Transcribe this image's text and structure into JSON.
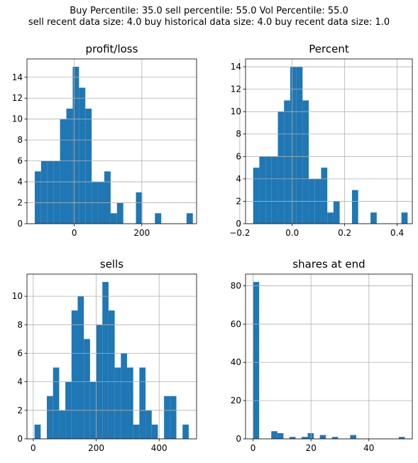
{
  "suptitle": {
    "line1": "Buy Percentile: 35.0 sell percentile: 55.0 Vol Percentile: 55.0",
    "line2": "sell recent data size: 4.0 buy historical data size: 4.0 buy recent data size: 1.0"
  },
  "colors": {
    "bar": "#1f77b4",
    "grid": "#b0b0b0",
    "axis": "#000000"
  },
  "chart_data": [
    {
      "type": "bar",
      "title": "profit/loss",
      "grid": true,
      "bins": 25,
      "xlim": [
        -140,
        362
      ],
      "ylim": [
        0,
        15.75
      ],
      "xticks": [
        0,
        200
      ],
      "xtick_labels": [
        "0",
        "200"
      ],
      "yticks": [
        0,
        2,
        4,
        6,
        8,
        10,
        12,
        14
      ],
      "yticks_labels": [
        "0",
        "2",
        "4",
        "6",
        "8",
        "10",
        "12",
        "14"
      ],
      "bin_range": [
        -117,
        351
      ],
      "counts": [
        5,
        6,
        6,
        6,
        10,
        11,
        15,
        13,
        11,
        4,
        4,
        5,
        1,
        2,
        0,
        0,
        3,
        0,
        0,
        1,
        0,
        0,
        0,
        0,
        1
      ]
    },
    {
      "type": "bar",
      "title": "Percent",
      "grid": true,
      "bins": 25,
      "xlim": [
        -0.178,
        0.458
      ],
      "ylim": [
        0,
        14.7
      ],
      "xticks": [
        -0.2,
        0.0,
        0.2,
        0.4
      ],
      "xtick_labels": [
        "−0.2",
        "0.0",
        "0.2",
        "0.4"
      ],
      "yticks": [
        0,
        2,
        4,
        6,
        8,
        10,
        12,
        14
      ],
      "yticks_labels": [
        "0",
        "2",
        "4",
        "6",
        "8",
        "10",
        "12",
        "14"
      ],
      "bin_range": [
        -0.149,
        0.44
      ],
      "counts": [
        5,
        6,
        6,
        6,
        10,
        11,
        14,
        14,
        11,
        4,
        4,
        5,
        1,
        2,
        0,
        0,
        3,
        0,
        0,
        1,
        0,
        0,
        0,
        0,
        1
      ]
    },
    {
      "type": "bar",
      "title": "sells",
      "grid": true,
      "bins": 25,
      "xlim": [
        -20,
        519
      ],
      "ylim": [
        0,
        11.55
      ],
      "xticks": [
        0,
        200,
        400
      ],
      "xtick_labels": [
        "0",
        "200",
        "400"
      ],
      "yticks": [
        0,
        2,
        4,
        6,
        8,
        10
      ],
      "yticks_labels": [
        "0",
        "2",
        "4",
        "6",
        "8",
        "10"
      ],
      "bin_range": [
        4,
        494
      ],
      "counts": [
        1,
        0,
        3,
        5,
        2,
        4,
        9,
        10,
        7,
        4,
        8,
        11,
        9,
        5,
        6,
        5,
        1,
        5,
        2,
        1,
        0,
        3,
        3,
        0,
        1
      ]
    },
    {
      "type": "bar",
      "title": "shares at end",
      "grid": true,
      "bins": 25,
      "xlim": [
        -2.6,
        55.0
      ],
      "ylim": [
        0,
        86.1
      ],
      "xticks": [
        0,
        20,
        40
      ],
      "xtick_labels": [
        "0",
        "20",
        "40"
      ],
      "yticks": [
        0,
        20,
        40,
        60,
        80
      ],
      "yticks_labels": [
        "0",
        "20",
        "40",
        "60",
        "80"
      ],
      "bin_range": [
        0,
        52.4
      ],
      "counts": [
        82,
        0,
        0,
        4,
        3,
        0,
        1,
        0,
        1,
        3,
        0,
        2,
        0,
        1,
        0,
        0,
        2,
        0,
        0,
        0,
        0,
        0,
        0,
        0,
        1
      ]
    }
  ]
}
